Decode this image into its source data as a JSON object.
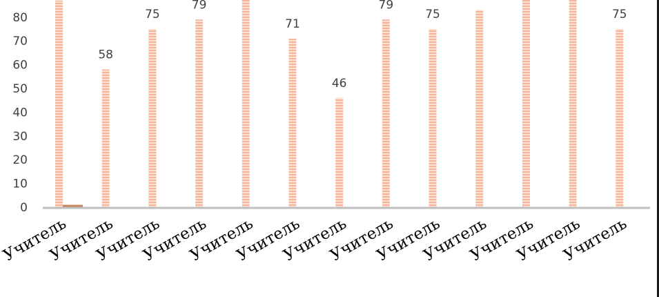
{
  "colors": {
    "bar": "#f5b59b",
    "bar_stripe": "#fbe0d4",
    "bar_small": "#c9855d",
    "axis": "#bfbfbf"
  },
  "chart_data": {
    "type": "bar",
    "categories": [
      "Учитель",
      "Учитель",
      "Учитель",
      "Учитель",
      "Учитель",
      "Учитель",
      "Учитель",
      "Учитель",
      "Учитель",
      "Учитель",
      "Учитель",
      "Учитель",
      "Учитель"
    ],
    "series": [
      {
        "values": [
          87,
          58,
          75,
          79,
          88,
          71,
          46,
          79,
          75,
          83,
          88,
          88,
          75
        ]
      },
      {
        "values": [
          1,
          null,
          null,
          null,
          null,
          null,
          null,
          null,
          null,
          null,
          null,
          null,
          null
        ]
      }
    ],
    "data_labels": [
      "",
      "58",
      "75",
      "79",
      "",
      "71",
      "46",
      "79",
      "75",
      "",
      "",
      "",
      "75"
    ],
    "yticks": [
      0,
      10,
      20,
      30,
      40,
      50,
      60,
      70,
      80
    ],
    "ylim": [
      0,
      87
    ],
    "title": "",
    "xlabel": "",
    "ylabel": "",
    "grid": false
  }
}
